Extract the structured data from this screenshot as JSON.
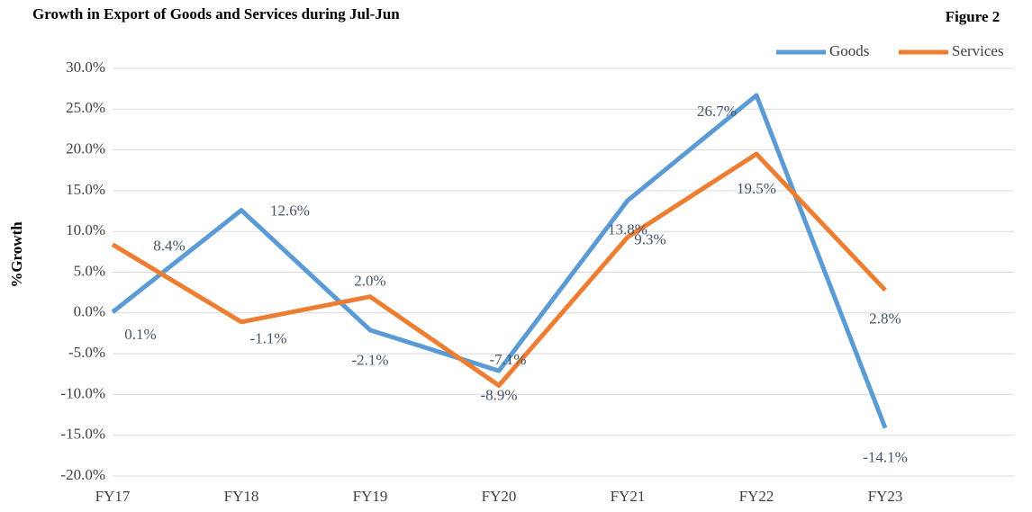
{
  "chart_data": {
    "type": "line",
    "title": "Growth in Export of Goods and Services during Jul-Jun",
    "subtitle": "Figure 2",
    "y_label": "%Growth",
    "categories": [
      "FY17",
      "FY18",
      "FY19",
      "FY20",
      "FY21",
      "FY22",
      "FY23",
      null
    ],
    "series": [
      {
        "name": "Goods",
        "color": "#5b9bd5",
        "values": [
          0.1,
          12.6,
          -2.1,
          -7.1,
          13.8,
          26.7,
          -14.1,
          null
        ],
        "value_labels": [
          "0.1%",
          "12.6%",
          "-2.1%",
          "-7.1%",
          "13.8%",
          "26.7%",
          "-14.1%",
          null
        ]
      },
      {
        "name": "Services",
        "color": "#ed7d31",
        "values": [
          8.4,
          -1.1,
          2.0,
          -8.9,
          9.3,
          19.5,
          2.8,
          null
        ],
        "value_labels": [
          "8.4%",
          "-1.1%",
          "2.0%",
          "-8.9%",
          "9.3%",
          "19.5%",
          "2.8%",
          null
        ]
      }
    ],
    "ylim": [
      -20,
      30
    ],
    "yticks": [
      {
        "value": -20,
        "label": "-20.0%"
      },
      {
        "value": -15,
        "label": "-15.0%"
      },
      {
        "value": -10,
        "label": "-10.0%"
      },
      {
        "value": -5,
        "label": "-5.0%"
      },
      {
        "value": 0,
        "label": "0.0%"
      },
      {
        "value": 5,
        "label": "5.0%"
      },
      {
        "value": 10,
        "label": "10.0%"
      },
      {
        "value": 15,
        "label": "15.0%"
      },
      {
        "value": 20,
        "label": "20.0%"
      },
      {
        "value": 25,
        "label": "25.0%"
      },
      {
        "value": 30,
        "label": "30.0%"
      }
    ],
    "grid": true,
    "legend": "top-right"
  }
}
